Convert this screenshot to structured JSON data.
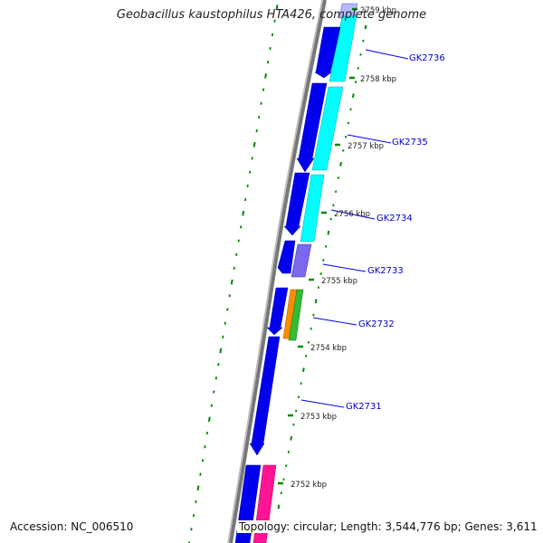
{
  "map": {
    "title": "Geobacillus kaustophilus HTA426, complete genome",
    "accession": "Accession: NC_006510",
    "topology": "Topology: circular; Length: 3,544,776 bp; Genes: 3,611"
  },
  "colors": {
    "backbone": "#777777",
    "forward_strand": "#0000ee",
    "tick": "#008800",
    "label_line": "#0000ee",
    "gene_label": "#0000cc",
    "kbp_label": "#222222"
  },
  "gene_labels": [
    "GK2736",
    "GK2735",
    "GK2734",
    "GK2733",
    "GK2732",
    "GK2731"
  ],
  "kbp_labels": [
    "2759 kbp",
    "2758 kbp",
    "2757 kbp",
    "2756 kbp",
    "2755 kbp",
    "2754 kbp",
    "2753 kbp",
    "2752 kbp"
  ],
  "track_colors": {
    "light_blue": "#b8b8ff",
    "cyan": "#00ffff",
    "slate": "#7b68ee",
    "orange": "#ff8c00",
    "green": "#33bb33",
    "magenta": "#ff1493"
  }
}
